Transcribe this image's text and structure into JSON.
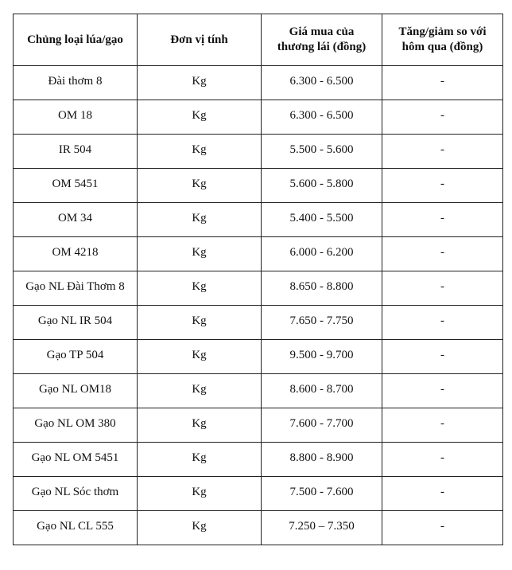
{
  "table": {
    "headers": [
      "Chủng loại lúa/gạo",
      "Đơn vị tính",
      "Giá mua của thương lái (đồng)",
      "Tăng/giảm so với hôm qua (đồng)"
    ],
    "rows": [
      [
        "Đài thơm 8",
        "Kg",
        "6.300 - 6.500",
        "-"
      ],
      [
        "OM 18",
        "Kg",
        "6.300 - 6.500",
        "-"
      ],
      [
        "IR 504",
        "Kg",
        "5.500 - 5.600",
        "-"
      ],
      [
        "OM 5451",
        "Kg",
        "5.600 - 5.800",
        "-"
      ],
      [
        "OM 34",
        "Kg",
        "5.400 - 5.500",
        "-"
      ],
      [
        "OM 4218",
        "Kg",
        "6.000 - 6.200",
        "-"
      ],
      [
        "Gạo NL Đài Thơm 8",
        "Kg",
        "8.650 - 8.800",
        "-"
      ],
      [
        "Gạo NL IR 504",
        "Kg",
        "7.650 - 7.750",
        "-"
      ],
      [
        "Gạo TP 504",
        "Kg",
        "9.500 - 9.700",
        "-"
      ],
      [
        "Gạo NL OM18",
        "Kg",
        "8.600 - 8.700",
        "-"
      ],
      [
        "Gạo NL OM 380",
        "Kg",
        "7.600 - 7.700",
        "-"
      ],
      [
        "Gạo NL OM 5451",
        "Kg",
        "8.800 - 8.900",
        "-"
      ],
      [
        "Gạo NL Sóc thơm",
        "Kg",
        "7.500 - 7.600",
        "-"
      ],
      [
        "Gạo NL CL 555",
        "Kg",
        "7.250 – 7.350",
        "-"
      ]
    ]
  }
}
